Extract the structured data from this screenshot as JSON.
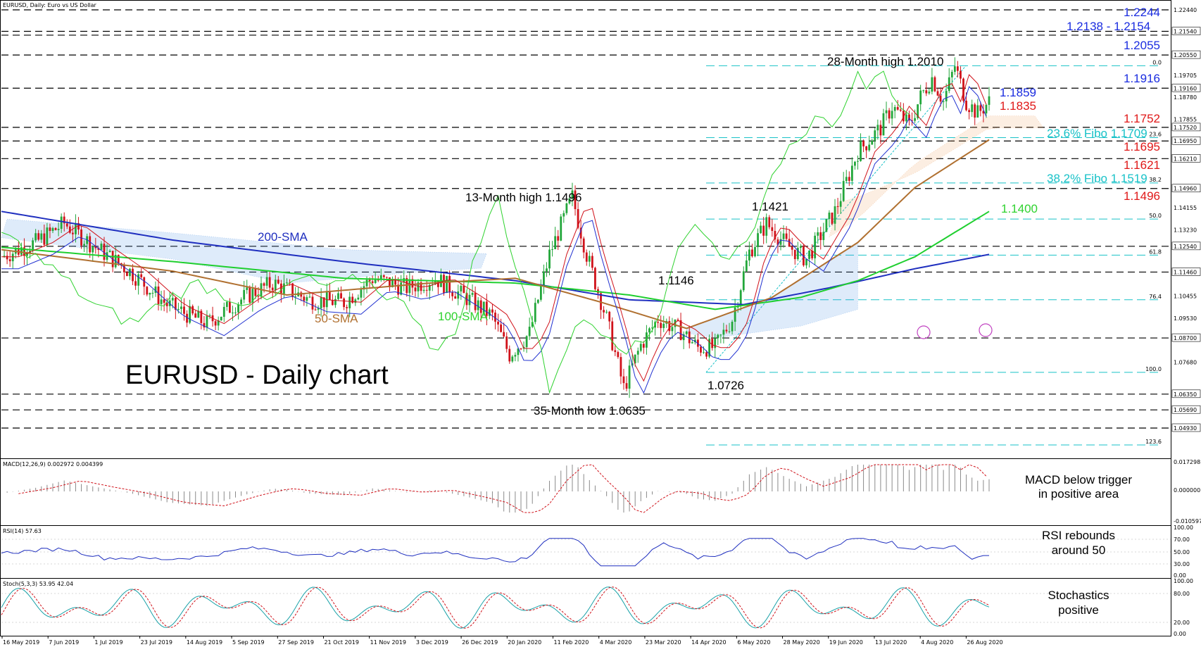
{
  "chart_data": {
    "type": "candlestick",
    "symbol_header": "EURUSD, Daily:  Euro vs US Dollar",
    "title": "EURUSD - Daily chart",
    "x_ticks": [
      "16 May 2019",
      "7 Jun 2019",
      "1 Jul 2019",
      "23 Jul 2019",
      "14 Aug 2019",
      "5 Sep 2019",
      "27 Sep 2019",
      "21 Oct 2019",
      "11 Nov 2019",
      "3 Dec 2019",
      "26 Dec 2019",
      "20 Jan 2020",
      "11 Feb 2020",
      "4 Mar 2020",
      "23 Mar 2020",
      "14 Apr 2020",
      "6 May 2020",
      "28 May 2020",
      "19 Jun 2020",
      "13 Jul 2020",
      "4 Aug 2020",
      "26 Aug 2020"
    ],
    "price_axis": {
      "ylim": [
        1.0375,
        1.2244
      ],
      "labels": [
        "1.22440",
        "1.21540",
        "1.20550",
        "1.19705",
        "1.19160",
        "1.18780",
        "1.17855",
        "1.17520",
        "1.16950",
        "1.16210",
        "1.14960",
        "1.14155",
        "1.13230",
        "1.12540",
        "1.11460",
        "1.10455",
        "1.09530",
        "1.08700",
        "1.07680",
        "1.06350",
        "1.05690",
        "1.04930"
      ],
      "levels": [
        1.2244,
        1.2154,
        1.2055,
        1.19705,
        1.1916,
        1.1878,
        1.17855,
        1.1752,
        1.1695,
        1.1621,
        1.1496,
        1.14155,
        1.1323,
        1.1254,
        1.1146,
        1.10455,
        1.0953,
        1.087,
        1.0768,
        1.0635,
        1.0569,
        1.0493
      ]
    },
    "horizontal_levels": [
      1.2244,
      1.2154,
      1.2138,
      1.2055,
      1.1916,
      1.1752,
      1.1695,
      1.1621,
      1.1496,
      1.1254,
      1.1146,
      1.087,
      1.0635,
      1.0569,
      1.0493
    ],
    "fib_levels": [
      {
        "label": "0.0",
        "value": 1.201
      },
      {
        "label": "23.6",
        "value": 1.1709
      },
      {
        "label": "38.2",
        "value": 1.1519
      },
      {
        "label": "50.0",
        "value": 1.1368
      },
      {
        "label": "61.8",
        "value": 1.1217
      },
      {
        "label": "76.4",
        "value": 1.103
      },
      {
        "label": "100.0",
        "value": 1.0726
      },
      {
        "label": "123.6",
        "value": 1.0422
      }
    ],
    "price_path": [
      [
        0,
        1.121
      ],
      [
        12,
        1.127
      ],
      [
        22,
        1.135
      ],
      [
        33,
        1.125
      ],
      [
        45,
        1.115
      ],
      [
        58,
        1.101
      ],
      [
        72,
        1.093
      ],
      [
        85,
        1.104
      ],
      [
        95,
        1.11
      ],
      [
        108,
        1.103
      ],
      [
        120,
        1.102
      ],
      [
        130,
        1.112
      ],
      [
        142,
        1.108
      ],
      [
        152,
        1.112
      ],
      [
        164,
        1.103
      ],
      [
        172,
        1.096
      ],
      [
        178,
        1.08
      ],
      [
        185,
        1.089
      ],
      [
        192,
        1.122
      ],
      [
        200,
        1.146
      ],
      [
        205,
        1.122
      ],
      [
        212,
        1.095
      ],
      [
        218,
        1.066
      ],
      [
        224,
        1.084
      ],
      [
        230,
        1.095
      ],
      [
        238,
        1.09
      ],
      [
        244,
        1.083
      ],
      [
        250,
        1.083
      ],
      [
        256,
        1.095
      ],
      [
        262,
        1.123
      ],
      [
        268,
        1.135
      ],
      [
        275,
        1.126
      ],
      [
        282,
        1.12
      ],
      [
        292,
        1.14
      ],
      [
        300,
        1.165
      ],
      [
        308,
        1.175
      ],
      [
        312,
        1.184
      ],
      [
        318,
        1.176
      ],
      [
        322,
        1.188
      ],
      [
        326,
        1.196
      ],
      [
        330,
        1.186
      ],
      [
        334,
        1.201
      ],
      [
        338,
        1.186
      ],
      [
        342,
        1.181
      ],
      [
        346,
        1.186
      ]
    ],
    "sma": [
      {
        "name": "200-SMA",
        "color": "#1f2fbf",
        "points": [
          [
            0,
            1.14
          ],
          [
            60,
            1.128
          ],
          [
            120,
            1.119
          ],
          [
            180,
            1.111
          ],
          [
            220,
            1.103
          ],
          [
            260,
            1.101
          ],
          [
            290,
            1.108
          ],
          [
            320,
            1.116
          ],
          [
            346,
            1.122
          ]
        ]
      },
      {
        "name": "100-SMA",
        "color": "#1fcf2f",
        "points": [
          [
            0,
            1.125
          ],
          [
            60,
            1.119
          ],
          [
            120,
            1.112
          ],
          [
            180,
            1.11
          ],
          [
            220,
            1.105
          ],
          [
            250,
            1.099
          ],
          [
            280,
            1.104
          ],
          [
            300,
            1.111
          ],
          [
            320,
            1.121
          ],
          [
            346,
            1.14
          ]
        ]
      },
      {
        "name": "50-SMA",
        "color": "#b07030",
        "points": [
          [
            0,
            1.124
          ],
          [
            60,
            1.115
          ],
          [
            100,
            1.105
          ],
          [
            150,
            1.11
          ],
          [
            180,
            1.112
          ],
          [
            210,
            1.102
          ],
          [
            240,
            1.091
          ],
          [
            270,
            1.104
          ],
          [
            300,
            1.127
          ],
          [
            320,
            1.15
          ],
          [
            346,
            1.17
          ]
        ]
      }
    ],
    "annotations": [
      {
        "text": "13-Month high 1.1496"
      },
      {
        "text": "35-Month low 1.0635"
      },
      {
        "text": "28-Month high 1.2010"
      },
      {
        "text": "1.1146"
      },
      {
        "text": "1.0726"
      },
      {
        "text": "1.1421"
      },
      {
        "text": "200-SMA"
      },
      {
        "text": "100-SMA"
      },
      {
        "text": "50-SMA"
      }
    ],
    "right_levels": [
      {
        "text": "1.2244",
        "color": "#1a2ce0"
      },
      {
        "text": "1.2138 - 1.2154",
        "color": "#1a2ce0"
      },
      {
        "text": "1.2055",
        "color": "#1a2ce0"
      },
      {
        "text": "1.1916",
        "color": "#1a2ce0"
      },
      {
        "text": "1.1859",
        "color": "#1a2ce0"
      },
      {
        "text": "1.1835",
        "color": "#e01818"
      },
      {
        "text": "1.1752",
        "color": "#e01818"
      },
      {
        "text": "23.6% Fibo 1.1709",
        "color": "#19c2c8"
      },
      {
        "text": "1.1695",
        "color": "#e01818"
      },
      {
        "text": "1.1621",
        "color": "#e01818"
      },
      {
        "text": "38.2% Fibo 1.1519",
        "color": "#19c2c8"
      },
      {
        "text": "1.1496",
        "color": "#e01818"
      },
      {
        "text": "1.1400",
        "color": "#2fd22f"
      }
    ],
    "macd": {
      "header": "MACD(12,26,9) 0.002972 0.004399",
      "axis_labels": [
        "0.017298",
        "0.000000",
        "-0.010597"
      ],
      "comment": "MACD below trigger in positive area",
      "comment_lines": [
        "MACD below trigger",
        "in positive area"
      ]
    },
    "rsi": {
      "header": "RSI(14) 57.63",
      "axis_labels": [
        "100.00",
        "70.00",
        "50.00",
        "30.00",
        "0.00"
      ],
      "comment_lines": [
        "RSI rebounds",
        "around 50"
      ]
    },
    "stoch": {
      "header": "Stoch(5,3,3) 53.95 42.04",
      "axis_labels": [
        "100.00",
        "80.00",
        "20.00",
        "0.00"
      ],
      "comment_lines": [
        "Stochastics",
        "positive"
      ]
    },
    "colors": {
      "level_blue": "#1a2ce0",
      "level_red": "#e01818",
      "fibo": "#19c2c8",
      "sma_green": "#2fd22f",
      "sma_blue": "#1f2fbf",
      "sma_brown": "#b07030"
    }
  }
}
